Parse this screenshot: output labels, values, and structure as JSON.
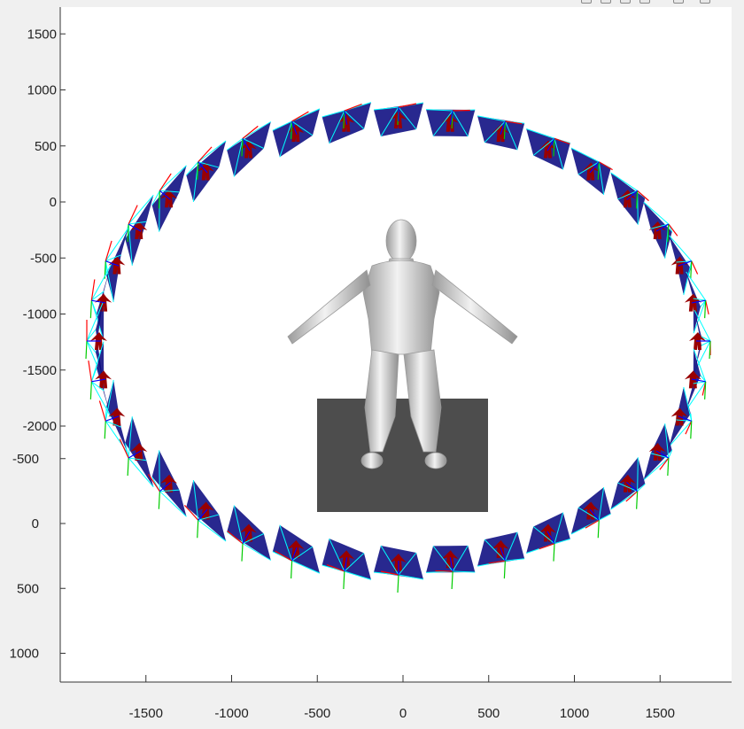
{
  "figure": {
    "background": "#f0f0f0",
    "axes_color": "#ffffff",
    "toolbar_icons": [
      "zoom-in-icon",
      "zoom-out-icon",
      "pan-icon",
      "rotate-icon",
      "data-cursor-icon",
      "home-icon"
    ]
  },
  "chart_data": {
    "type": "scatter",
    "title": "",
    "xlabel": "",
    "ylabel": "",
    "grid": false,
    "xlim": [
      -2000,
      1900
    ],
    "ylim_upper": [
      -2100,
      1700
    ],
    "ylim_lower": [
      -600,
      1100
    ],
    "x_ticks": [
      "-1500",
      "-1000",
      "-500",
      "0",
      "500",
      "1000",
      "1500"
    ],
    "y_ticks_upper": [
      "1500",
      "1000",
      "500",
      "0",
      "-500",
      "-1000",
      "-1500",
      "-2000"
    ],
    "y_ticks_lower": [
      "-500",
      "0",
      "500",
      "1000"
    ],
    "camera_ring": {
      "count": 36,
      "center_x": -10,
      "center_y": -1000,
      "radius_x": 1800,
      "radius_y": 1350,
      "colors": {
        "frame_face": "#0a0a80",
        "frame_edge": "#00ffff",
        "axis_x": "#ff0000",
        "axis_y": "#00cc00",
        "axis_z": "#0000ff",
        "silhouette": "#990000"
      }
    },
    "subject": {
      "label": "",
      "body_color": "#d8d8d8",
      "floor_color": "#4d4d4d"
    }
  }
}
